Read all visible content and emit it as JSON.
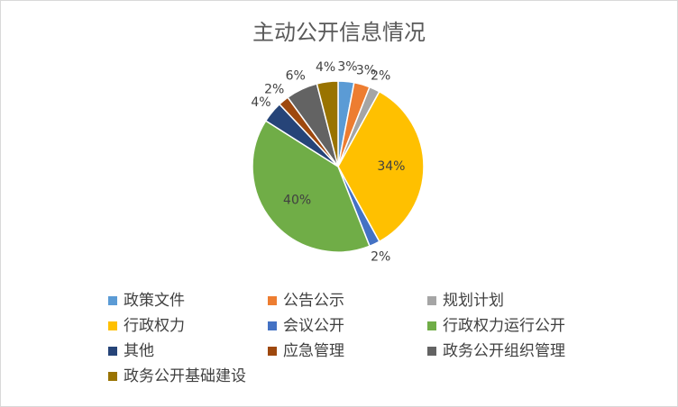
{
  "chart_data": {
    "type": "pie",
    "title": "主动公开信息情况",
    "categories": [
      "政策文件",
      "公告公示",
      "规划计划",
      "行政权力",
      "会议公开",
      "行政权力运行公开",
      "其他",
      "应急管理",
      "政务公开组织管理",
      "政务公开基础建设"
    ],
    "values": [
      3,
      3,
      2,
      34,
      2,
      40,
      4,
      2,
      6,
      4
    ],
    "value_labels": [
      "3%",
      "3%",
      "2%",
      "34%",
      "2%",
      "40%",
      "4%",
      "2%",
      "6%",
      "4%"
    ],
    "colors": [
      "#5b9bd5",
      "#ed7d31",
      "#a5a5a5",
      "#ffc000",
      "#4472c4",
      "#70ad47",
      "#264478",
      "#9e480e",
      "#636363",
      "#997300"
    ],
    "legend": "bottom"
  }
}
